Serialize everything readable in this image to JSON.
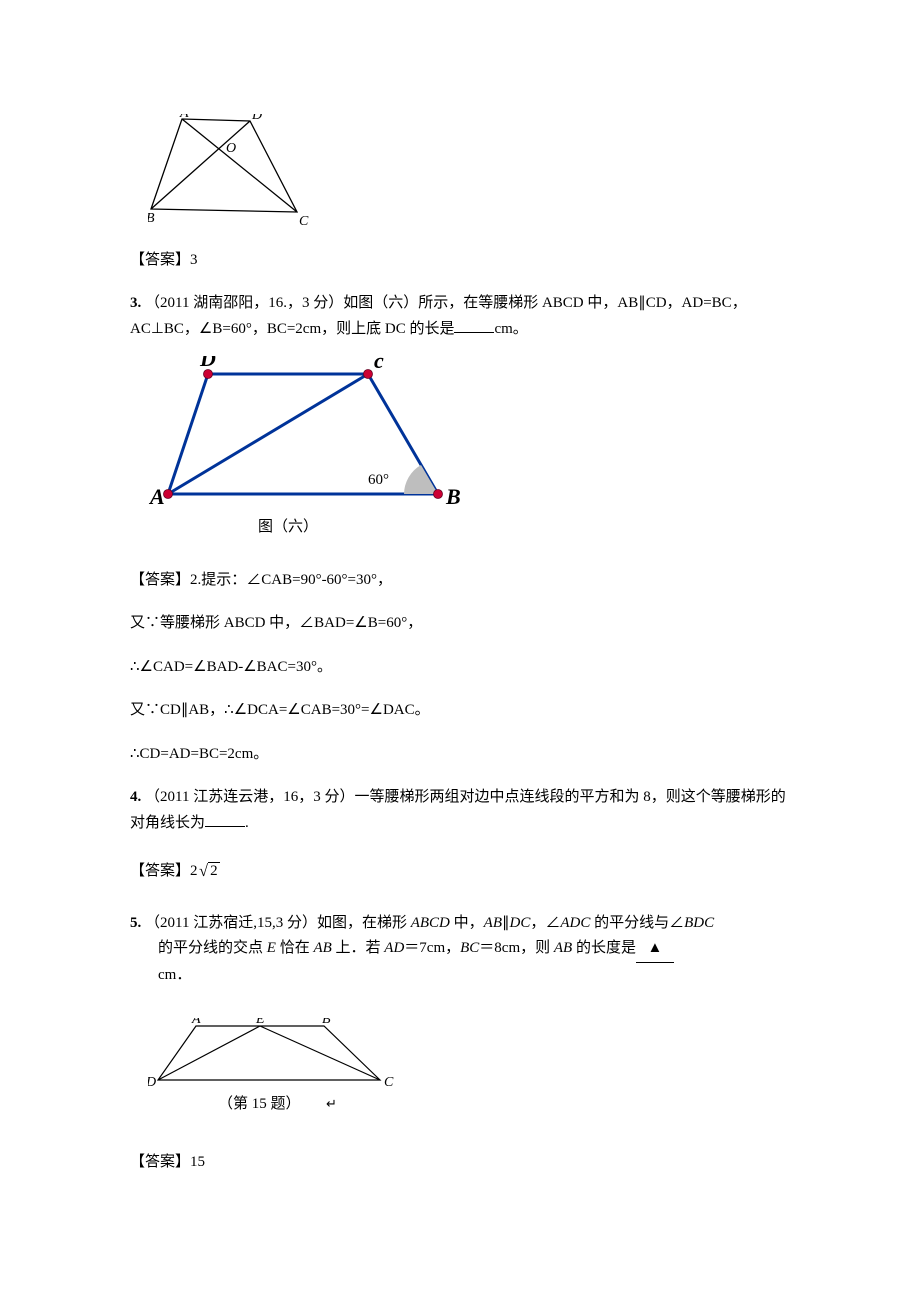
{
  "fig_top": {
    "stroke": "#000000",
    "fill": "none",
    "points": {
      "A": [
        34,
        5
      ],
      "D": [
        102,
        7
      ],
      "B": [
        3,
        95
      ],
      "C": [
        149,
        98
      ],
      "O": [
        72,
        34
      ]
    },
    "label_font": "italic 14px Times New Roman"
  },
  "answer2": {
    "label": "【答案】",
    "value": "3"
  },
  "q3": {
    "number": "3.",
    "source": "（2011 湖南邵阳，16.，3 分）",
    "text_1": "如图（六）所示，在等腰梯形 ABCD 中，AB∥CD，AD=BC，AC⊥BC，∠B=60°，BC=2cm，则上底 DC 的长是",
    "text_2": "cm。"
  },
  "fig6": {
    "line_color": "#003399",
    "marker_color": "#cc0033",
    "angle_fill": "#bebebe",
    "text_color": "#000000",
    "font": "italic bold 22px Times New Roman",
    "angle_label": "60°",
    "caption": "图（六）",
    "points": {
      "D": [
        60,
        18
      ],
      "C": [
        220,
        18
      ],
      "A": [
        20,
        138
      ],
      "B": [
        290,
        138
      ]
    }
  },
  "q3_sol": {
    "ans_label": "【答案】",
    "l1": "2.提示：∠CAB=90°-60°=30°，",
    "l2": "又∵等腰梯形 ABCD 中，∠BAD=∠B=60°，",
    "l3": "∴∠CAD=∠BAD-∠BAC=30°。",
    "l4": "又∵CD∥AB，∴∠DCA=∠CAB=30°=∠DAC。",
    "l5": "∴CD=AD=BC=2cm。"
  },
  "q4": {
    "number": "4.",
    "source": "（2011 江苏连云港，16，3 分）",
    "text_1": "一等腰梯形两组对边中点连线段的平方和为 8，则这个等腰梯形的对角线长为",
    "text_2": ".",
    "ans_label": "【答案】",
    "ans_prefix": "2",
    "ans_root": "2"
  },
  "q5": {
    "number": "5.",
    "source": "（2011 江苏宿迁,15,3 分）",
    "text_1a": "如图，在梯形 ",
    "abcd": "ABCD",
    "text_1b": " 中，",
    "ab": "AB",
    "par": "∥",
    "dc": "DC",
    "comma": "，",
    "ang": "∠",
    "adc": "ADC",
    "text_1c": " 的平分线与∠",
    "bdc": "BDC",
    "l2a": "的平分线的交点 ",
    "E": "E",
    "l2b": " 恰在 ",
    "l2c": " 上．若 ",
    "AD": "AD",
    "eq7": "＝7cm，",
    "BC": "BC",
    "eq8": "＝8cm，则 ",
    "l2d": " 的长度是",
    "unit": "cm．"
  },
  "fig15": {
    "stroke": "#000000",
    "font": "italic 14px Times New Roman",
    "caption": "（第 15 题）",
    "points": {
      "A": [
        48,
        8
      ],
      "E": [
        112,
        8
      ],
      "B": [
        176,
        8
      ],
      "D": [
        10,
        62
      ],
      "C": [
        232,
        62
      ]
    }
  },
  "answer5": {
    "label": "【答案】",
    "value": "15"
  }
}
